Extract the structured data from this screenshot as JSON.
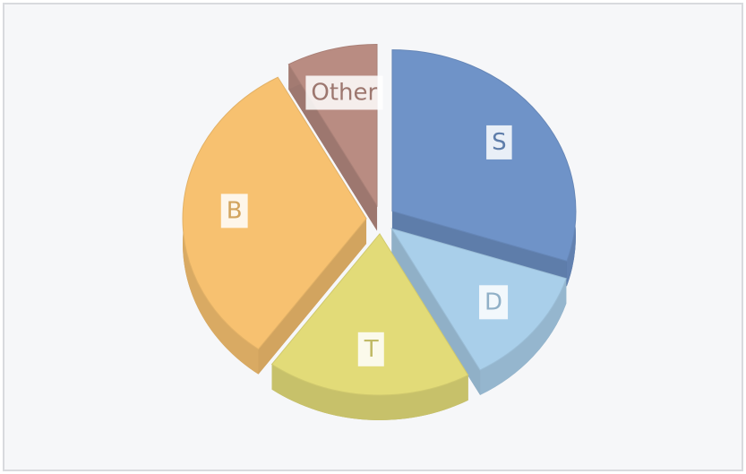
{
  "chart_data": {
    "type": "pie",
    "categories": [
      "S",
      "D",
      "T",
      "B",
      "Other"
    ],
    "values": [
      30,
      12,
      18,
      32,
      8
    ],
    "colors": [
      "#6f93c8",
      "#a9cfea",
      "#e2db78",
      "#f7c170",
      "#b98c82"
    ],
    "exploded": true,
    "three_d": true
  }
}
